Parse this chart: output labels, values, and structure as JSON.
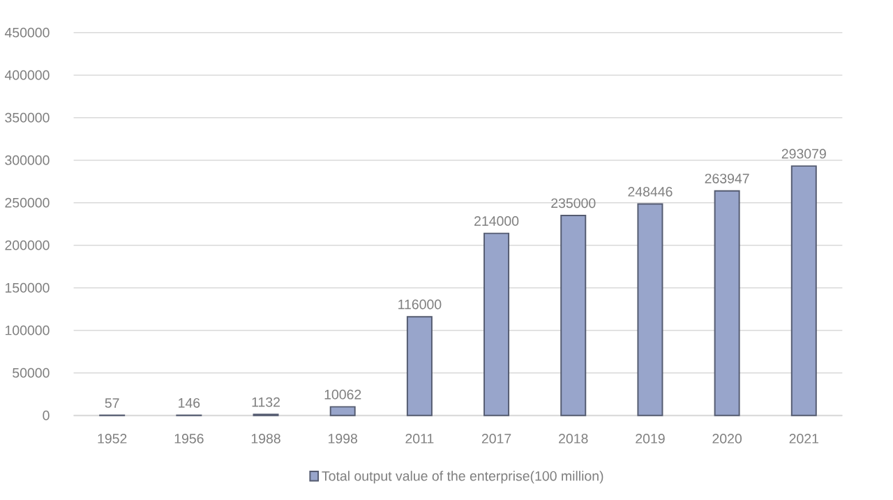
{
  "chart_data": {
    "type": "bar",
    "categories": [
      "1952",
      "1956",
      "1988",
      "1998",
      "2011",
      "2017",
      "2018",
      "2019",
      "2020",
      "2021"
    ],
    "series": [
      {
        "name": "Total output value of the enterprise(100 million)",
        "color": "#98a5cb",
        "values": [
          57,
          146,
          1132,
          10062,
          116000,
          214000,
          235000,
          248446,
          263947,
          293079
        ]
      }
    ],
    "ylim": [
      0,
      450000
    ],
    "yticks": [
      0,
      50000,
      100000,
      150000,
      200000,
      250000,
      300000,
      350000,
      400000,
      450000
    ],
    "grid": "y",
    "legend": "bottom",
    "data_labels": true
  }
}
